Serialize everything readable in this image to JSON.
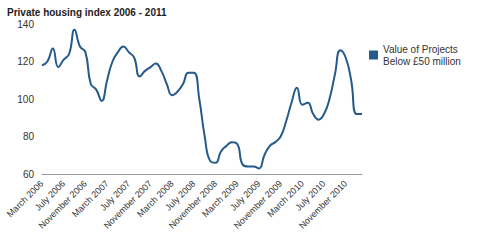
{
  "chart_data": {
    "type": "line",
    "title": "Private housing index 2006 - 2011",
    "categories": [
      "March 2006",
      null,
      null,
      null,
      "July 2006",
      null,
      null,
      null,
      "November 2006",
      null,
      null,
      null,
      "March 2007",
      null,
      null,
      null,
      "July 2007",
      null,
      null,
      null,
      "November 2007",
      null,
      null,
      null,
      "March 2008",
      null,
      null,
      null,
      "July 2008",
      null,
      null,
      null,
      "November 2008",
      null,
      null,
      null,
      "March 2009",
      null,
      null,
      null,
      "July 2009",
      null,
      null,
      null,
      "November 2009",
      null,
      null,
      null,
      "March 2010",
      null,
      null,
      null,
      "July 2010",
      null,
      null,
      null,
      "November 2010",
      null,
      null,
      null
    ],
    "series": [
      {
        "name": "Value of Projects Below £50 million",
        "color": "#245a8c",
        "values": [
          118,
          120,
          127,
          117,
          121,
          124,
          137,
          128,
          125,
          108,
          105,
          99,
          110,
          120,
          125,
          128,
          125,
          122,
          112,
          115,
          117,
          119,
          115,
          108,
          102,
          104,
          108,
          114,
          114,
          100,
          80,
          67,
          66,
          72,
          75,
          77,
          76,
          65,
          64,
          64,
          63,
          70,
          75,
          77,
          80,
          88,
          98,
          106,
          97,
          98,
          92,
          89,
          92,
          100,
          113,
          126,
          122,
          110,
          92,
          92
        ],
        "marker": "none",
        "line_style": "solid"
      }
    ],
    "ylim": [
      60,
      140
    ],
    "yticks": [
      60,
      80,
      100,
      120,
      140
    ],
    "grid": false,
    "legend": "right"
  }
}
